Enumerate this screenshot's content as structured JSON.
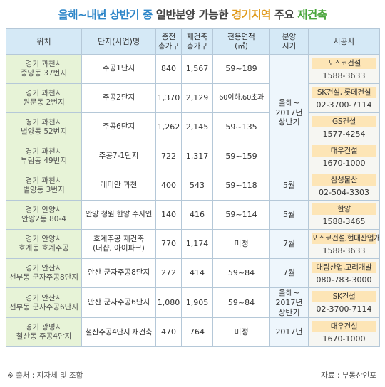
{
  "title": {
    "part1": "올해~내년 상반기 중",
    "part2": "일반분양 가능한",
    "part3": "경기지역",
    "part4": "주요",
    "part5": "재건축"
  },
  "headers": {
    "location": "위치",
    "project": "단지(사업)명",
    "households_a": "종전",
    "households_b": "총가구",
    "rebuild_a": "재건축",
    "rebuild_b": "총가구",
    "area_a": "전용면적",
    "area_b": "(㎡)",
    "sale_a": "분양",
    "sale_b": "시기",
    "builder": "시공사"
  },
  "rows": [
    {
      "loc1": "경기 과천시",
      "loc2": "중앙동 37번지",
      "project": "주공1단지",
      "project2": "",
      "prev": "840",
      "new": "1,567",
      "area": "59~189",
      "company": "포스코건설",
      "phone": "1588-3633"
    },
    {
      "loc1": "경기 과천시",
      "loc2": "원문동 2번지",
      "project": "주공2단지",
      "project2": "",
      "prev": "1,370",
      "new": "2,129",
      "area": "60이하,60초과",
      "company": "SK건설, 롯데건설",
      "phone": "02-3700-7114"
    },
    {
      "loc1": "경기 과천시",
      "loc2": "별양동 52번지",
      "project": "주공6단지",
      "project2": "",
      "prev": "1,262",
      "new": "2,145",
      "area": "59~135",
      "company": "GS건설",
      "phone": "1577-4254"
    },
    {
      "loc1": "경기 과천시",
      "loc2": "부림동 49번지",
      "project": "주공7-1단지",
      "project2": "",
      "prev": "722",
      "new": "1,317",
      "area": "59~159",
      "company": "대우건설",
      "phone": "1670-1000"
    },
    {
      "loc1": "경기 과천시",
      "loc2": "별양동 3번지",
      "project": "래미안 과천",
      "project2": "",
      "prev": "400",
      "new": "543",
      "area": "59~118",
      "sale": "5월",
      "company": "삼성물산",
      "phone": "02-504-3303"
    },
    {
      "loc1": "경기 안양시",
      "loc2": "안양2동 80-4",
      "project": "안양 청원 한양 수자인",
      "project2": "",
      "prev": "140",
      "new": "416",
      "area": "59~114",
      "sale": "5월",
      "company": "한양",
      "phone": "1588-3465"
    },
    {
      "loc1": "경기 안양시",
      "loc2": "호계동 호계주공",
      "project": "호계주공 재건축",
      "project2": "(더샵, 아이파크)",
      "prev": "770",
      "new": "1,174",
      "area": "미정",
      "sale": "7월",
      "company": "포스코건설,현대산업개발",
      "phone": "1588-3633"
    },
    {
      "loc1": "경기 안산시",
      "loc2": "선부동 군자주공8단지",
      "project": "안산 군자주공8단지",
      "project2": "",
      "prev": "272",
      "new": "414",
      "area": "59~84",
      "sale": "7월",
      "company": "대림산업,고려개발",
      "phone": "080-783-3000"
    },
    {
      "loc1": "경기 안산시",
      "loc2": "선부동 군자주공6단지",
      "project": "안산 군자주공6단지",
      "project2": "",
      "prev": "1,080",
      "new": "1,905",
      "area": "59~84",
      "sale1": "올해~",
      "sale2": "2017년",
      "sale3": "상반기",
      "company": "SK건설",
      "phone": "02-3700-7114"
    },
    {
      "loc1": "경기 광명시",
      "loc2": "철산동 주공4단지",
      "project": "철산주공4단지 재건축",
      "project2": "",
      "prev": "470",
      "new": "764",
      "area": "미정",
      "sale": "2017년",
      "company": "대우건설",
      "phone": "1670-1000"
    }
  ],
  "merged_sale": {
    "line1": "올해~",
    "line2": "2017년",
    "line3": "상반기"
  },
  "footer": {
    "source_left": "※ 출처 : 지자체 및 조합",
    "source_right": "자료 : 부동산인포"
  }
}
